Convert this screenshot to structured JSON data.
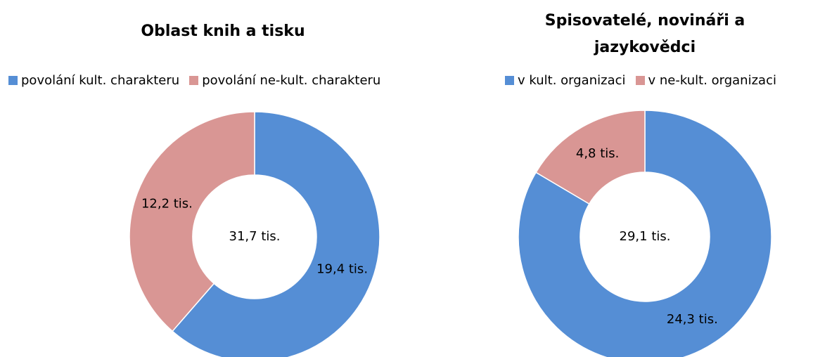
{
  "chart_data": [
    {
      "type": "donut",
      "title": "Oblast knih a tisku",
      "categories": [
        "povolání kult. charakteru",
        "povolání ne-kult. charakteru"
      ],
      "values": [
        19.4,
        12.2
      ],
      "value_labels": [
        "19,4 tis.",
        "12,2 tis."
      ],
      "colors": [
        "#558ed5",
        "#d99694"
      ],
      "center_label": "31,7 tis.",
      "legend": "top"
    },
    {
      "type": "donut",
      "title": "Spisovatelé, novináři a jazykovědci",
      "categories": [
        "v kult. organizaci",
        "v ne-kult. organizaci"
      ],
      "values": [
        24.3,
        4.8
      ],
      "value_labels": [
        "24,3 tis.",
        "4,8 tis."
      ],
      "colors": [
        "#558ed5",
        "#d99694"
      ],
      "center_label": "29,1 tis.",
      "legend": "top"
    }
  ]
}
